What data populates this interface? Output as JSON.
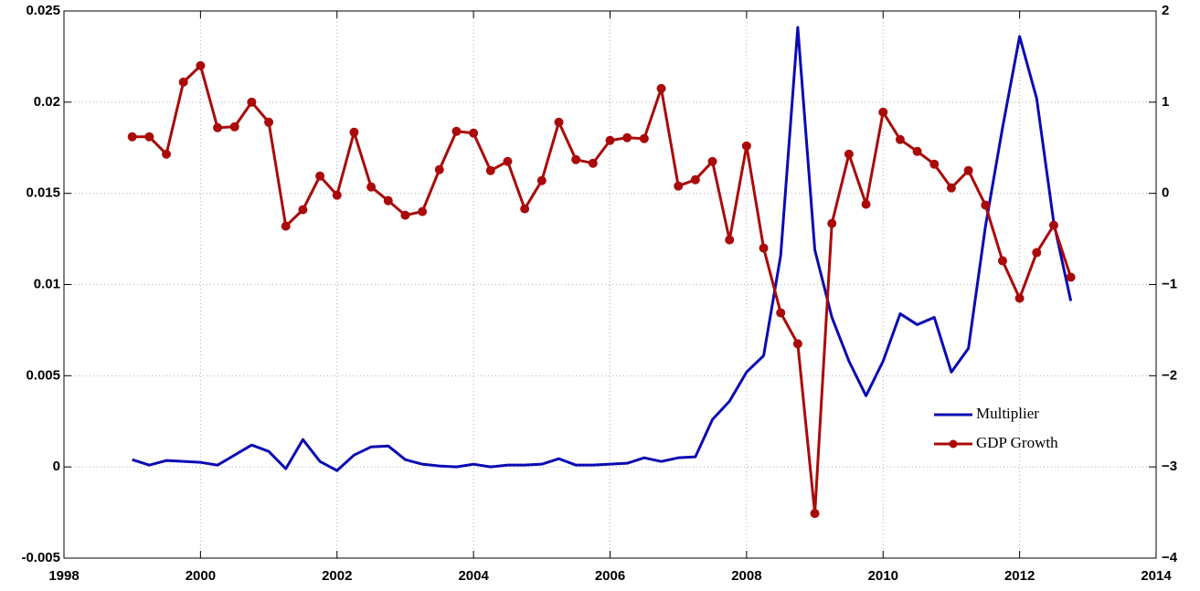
{
  "chart_data": {
    "type": "line",
    "x": [
      1999,
      1999.25,
      1999.5,
      1999.75,
      2000,
      2000.25,
      2000.5,
      2000.75,
      2001,
      2001.25,
      2001.5,
      2001.75,
      2002,
      2002.25,
      2002.5,
      2002.75,
      2003,
      2003.25,
      2003.5,
      2003.75,
      2004,
      2004.25,
      2004.5,
      2004.75,
      2005,
      2005.25,
      2005.5,
      2005.75,
      2006,
      2006.25,
      2006.5,
      2006.75,
      2007,
      2007.25,
      2007.5,
      2007.75,
      2008,
      2008.25,
      2008.5,
      2008.75,
      2009,
      2009.25,
      2009.5,
      2009.75,
      2010,
      2010.25,
      2010.5,
      2010.75,
      2011,
      2011.25,
      2011.5,
      2011.75,
      2012,
      2012.25,
      2012.5,
      2012.75
    ],
    "series": [
      {
        "name": "Multiplier",
        "color": "#0a0ab4",
        "marker": "none",
        "values": [
          0.0004,
          0.0001,
          0.00035,
          0.0003,
          0.00025,
          0.0001,
          0.00065,
          0.0012,
          0.00085,
          -0.0001,
          0.0015,
          0.0003,
          -0.0002,
          0.00065,
          0.0011,
          0.00115,
          0.0004,
          0.00015,
          5e-05,
          0.0,
          0.00015,
          0.0,
          0.0001,
          0.0001,
          0.00015,
          0.00045,
          0.0001,
          0.0001,
          0.00015,
          0.0002,
          0.0005,
          0.0003,
          0.0005,
          0.00055,
          0.0026,
          0.0036,
          0.0052,
          0.0061,
          0.0116,
          0.0241,
          0.0119,
          0.0082,
          0.0058,
          0.0039,
          0.0058,
          0.0084,
          0.0078,
          0.0082,
          0.0052,
          0.0065,
          0.0132,
          0.0186,
          0.0236,
          0.0202,
          0.0134,
          0.0091
        ]
      },
      {
        "name": "GDP Growth",
        "color": "#aa0a0a",
        "marker": "circle",
        "axis": "y2",
        "values": [
          0.62,
          0.62,
          0.43,
          1.22,
          1.4,
          0.72,
          0.73,
          1.0,
          0.78,
          -0.36,
          -0.18,
          0.19,
          -0.02,
          0.67,
          0.07,
          -0.08,
          -0.24,
          -0.2,
          0.26,
          0.68,
          0.66,
          0.25,
          0.35,
          -0.17,
          0.14,
          0.78,
          0.37,
          0.33,
          0.58,
          0.61,
          0.6,
          1.15,
          0.08,
          0.15,
          0.35,
          -0.51,
          0.52,
          -0.6,
          -1.31,
          -1.65,
          -3.51,
          -0.33,
          0.43,
          -0.12,
          0.89,
          0.59,
          0.46,
          0.32,
          0.06,
          0.25,
          -0.13,
          -0.74,
          -1.15,
          -0.65,
          -0.35,
          -0.92
        ]
      }
    ],
    "xlim": [
      1998,
      2014
    ],
    "xticks": [
      1998,
      2000,
      2002,
      2004,
      2006,
      2008,
      2010,
      2012,
      2014
    ],
    "ylim": [
      -0.005,
      0.025
    ],
    "yticks": [
      -0.005,
      0,
      0.005,
      0.01,
      0.015,
      0.02,
      0.025
    ],
    "y2lim": [
      -4,
      2
    ],
    "y2ticks": [
      {
        "value": -4,
        "label": "−4"
      },
      {
        "value": -3,
        "label": "−3"
      },
      {
        "value": -2,
        "label": "−2"
      },
      {
        "value": -1,
        "label": "−1"
      },
      0,
      1,
      2
    ],
    "grid": true,
    "legend": "lower right"
  }
}
